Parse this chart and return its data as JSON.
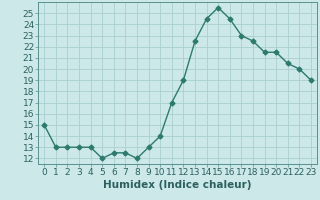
{
  "x": [
    0,
    1,
    2,
    3,
    4,
    5,
    6,
    7,
    8,
    9,
    10,
    11,
    12,
    13,
    14,
    15,
    16,
    17,
    18,
    19,
    20,
    21,
    22,
    23
  ],
  "y": [
    15,
    13,
    13,
    13,
    13,
    12,
    12.5,
    12.5,
    12,
    13,
    14,
    17,
    19,
    22.5,
    24.5,
    25.5,
    24.5,
    23,
    22.5,
    21.5,
    21.5,
    20.5,
    20,
    19
  ],
  "line_color": "#2d7a6e",
  "marker": "D",
  "marker_size": 2.5,
  "bg_color": "#cce8e8",
  "grid_color": "#aacfcf",
  "xlabel": "Humidex (Indice chaleur)",
  "xlim": [
    -0.5,
    23.5
  ],
  "ylim": [
    11.5,
    26.0
  ],
  "xticks": [
    0,
    1,
    2,
    3,
    4,
    5,
    6,
    7,
    8,
    9,
    10,
    11,
    12,
    13,
    14,
    15,
    16,
    17,
    18,
    19,
    20,
    21,
    22,
    23
  ],
  "yticks": [
    12,
    13,
    14,
    15,
    16,
    17,
    18,
    19,
    20,
    21,
    22,
    23,
    24,
    25
  ],
  "xlabel_fontsize": 7.5,
  "tick_fontsize": 6.5,
  "line_width": 1.0
}
